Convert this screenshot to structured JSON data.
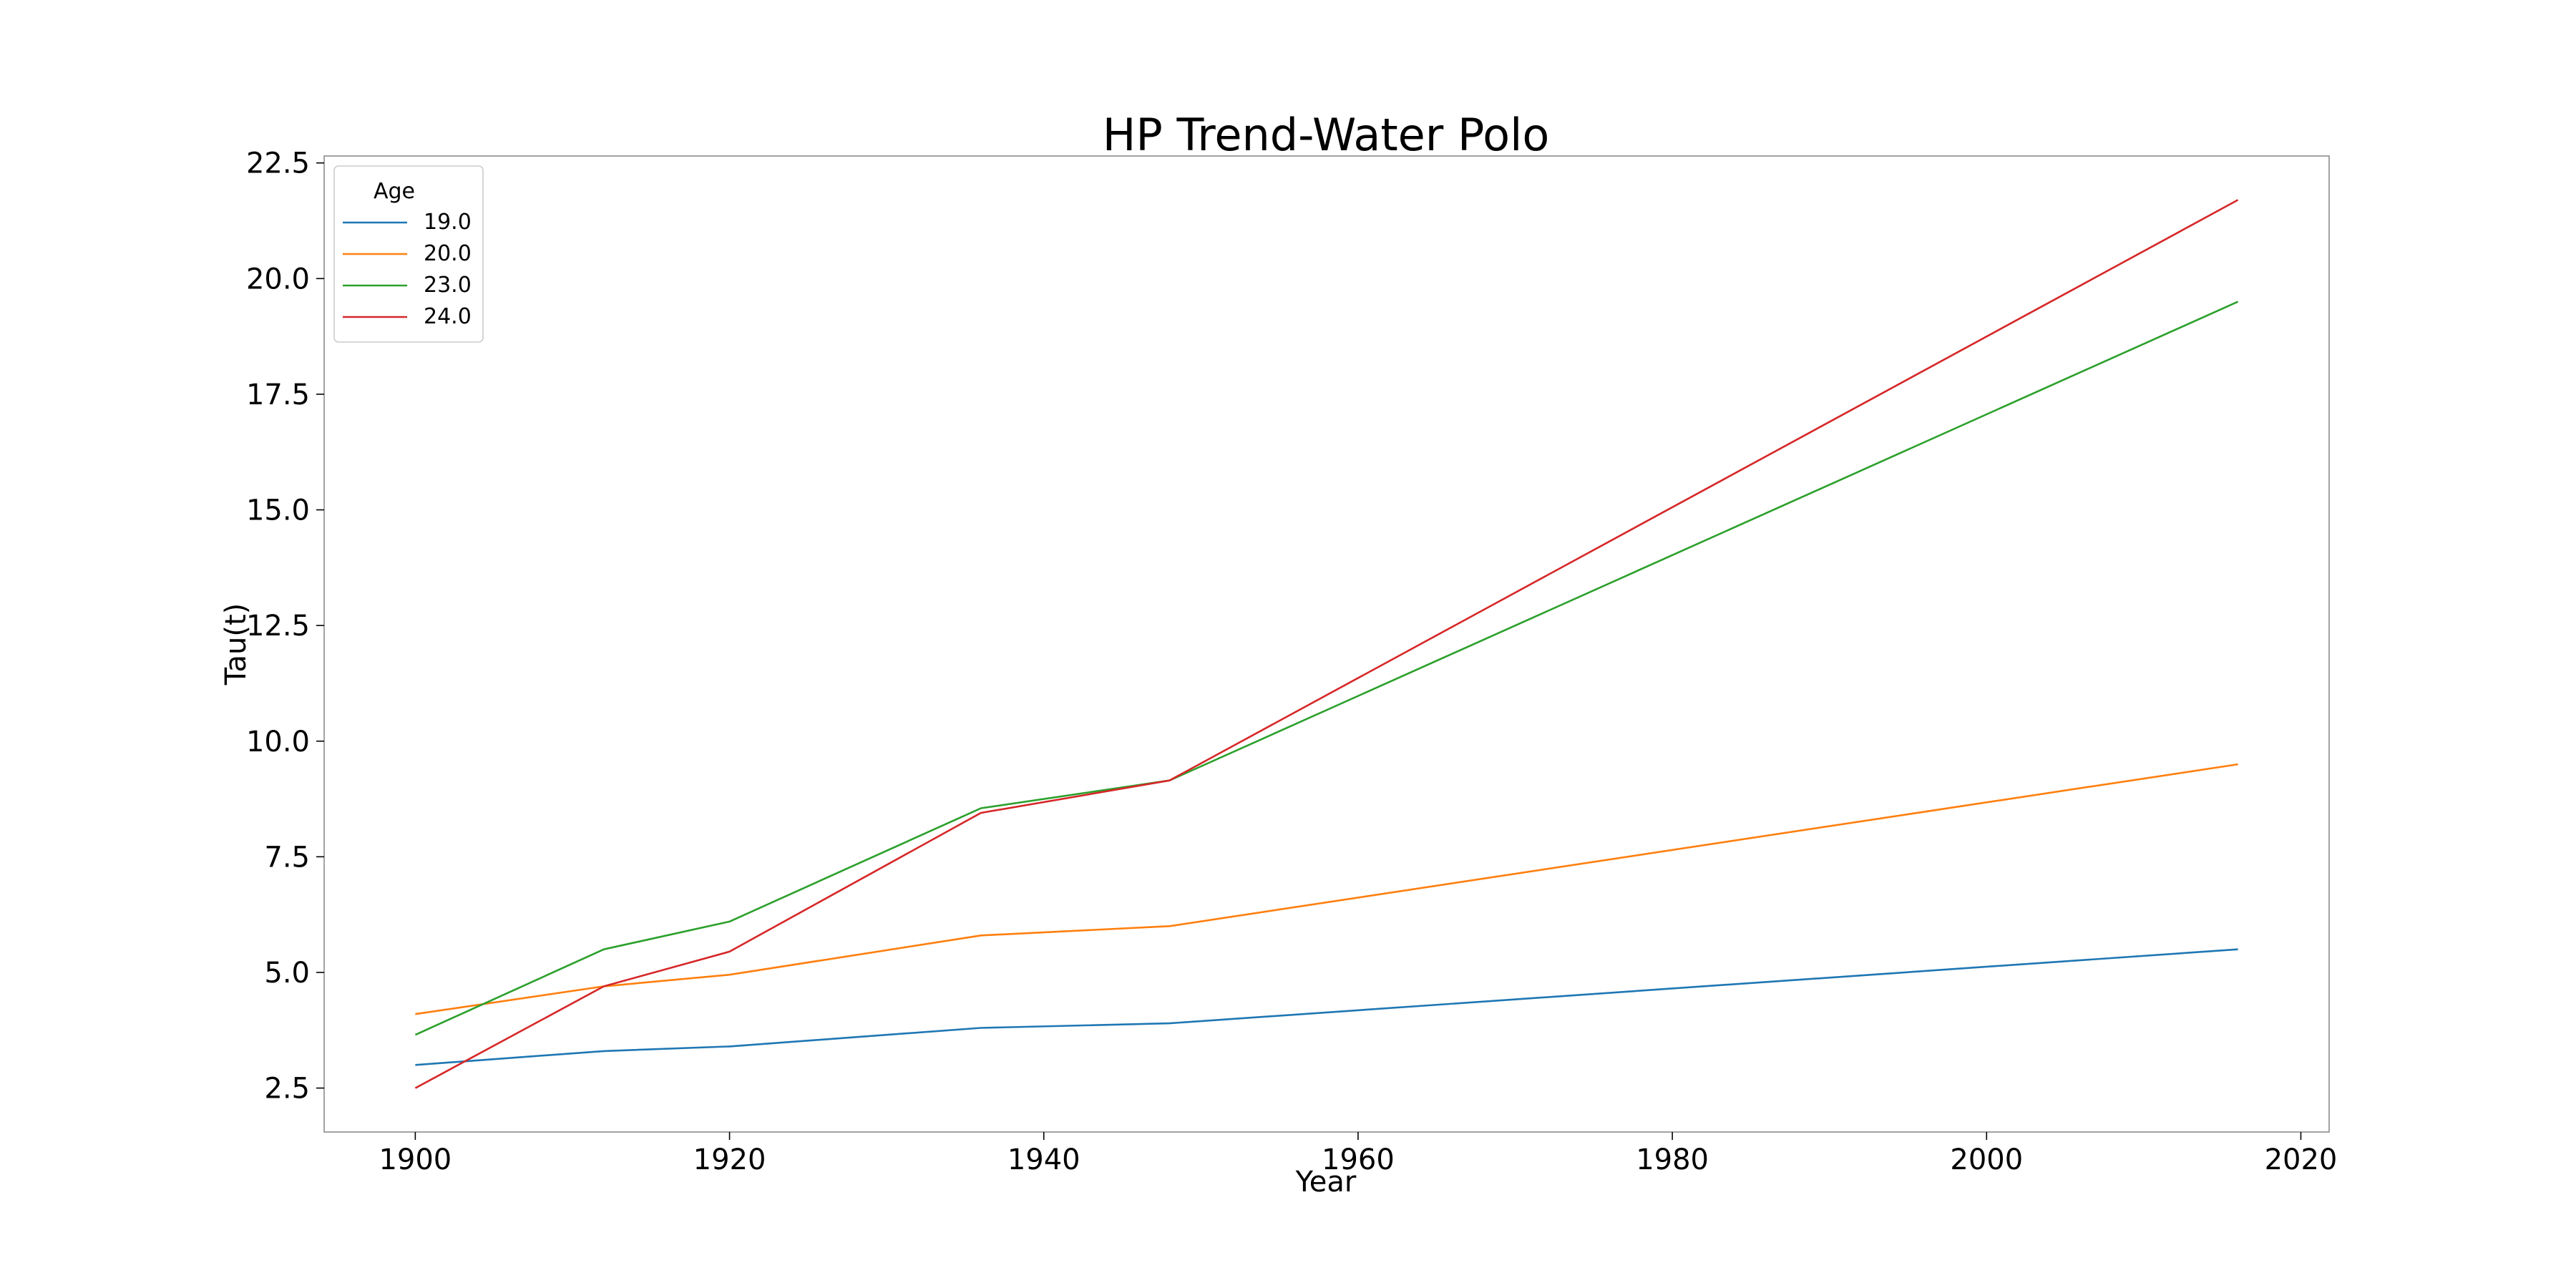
{
  "chart_data": {
    "type": "line",
    "title": "HP Trend-Water Polo",
    "xlabel": "Year",
    "ylabel": "Tau(t)",
    "xlim": [
      1894.2,
      2021.8
    ],
    "ylim": [
      1.55,
      22.65
    ],
    "x_ticks": [
      1900,
      1920,
      1940,
      1960,
      1980,
      2000,
      2020
    ],
    "x_tick_labels": [
      "1900",
      "1920",
      "1940",
      "1960",
      "1980",
      "2000",
      "2020"
    ],
    "y_ticks": [
      2.5,
      5.0,
      7.5,
      10.0,
      12.5,
      15.0,
      17.5,
      20.0,
      22.5
    ],
    "y_tick_labels": [
      "2.5",
      "5.0",
      "7.5",
      "10.0",
      "12.5",
      "15.0",
      "17.5",
      "20.0",
      "22.5"
    ],
    "grid": false,
    "legend": {
      "title": "Age",
      "placement": "upper-left"
    },
    "x": [
      1900,
      1912,
      1920,
      1936,
      1948,
      2016
    ],
    "series": [
      {
        "name": "19.0",
        "color": "#1f77b4",
        "values": [
          3.0,
          3.3,
          3.4,
          3.8,
          3.9,
          5.5
        ]
      },
      {
        "name": "20.0",
        "color": "#ff7f0e",
        "values": [
          4.1,
          4.7,
          4.95,
          5.8,
          6.0,
          9.5
        ]
      },
      {
        "name": "23.0",
        "color": "#2ca02c",
        "values": [
          3.65,
          5.5,
          6.1,
          8.55,
          9.15,
          19.5
        ]
      },
      {
        "name": "24.0",
        "color": "#d62728",
        "values": [
          2.5,
          4.7,
          5.45,
          8.45,
          9.15,
          21.7
        ]
      }
    ]
  }
}
